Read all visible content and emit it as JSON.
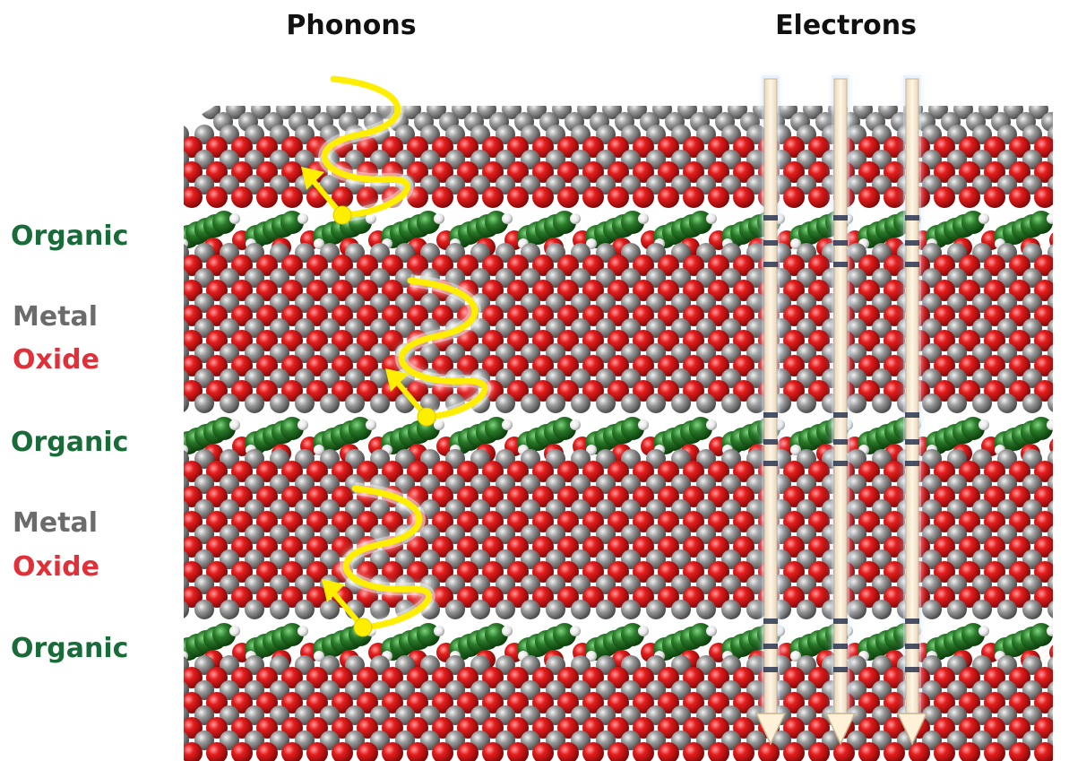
{
  "titles": {
    "phonons": "Phonons",
    "electrons": "Electrons"
  },
  "side_labels": [
    {
      "id": "organic-1",
      "text": "Organic",
      "kind": "organic"
    },
    {
      "id": "metal-1",
      "text": "Metal",
      "kind": "metal"
    },
    {
      "id": "oxide-1",
      "text": "Oxide",
      "kind": "oxide"
    },
    {
      "id": "organic-2",
      "text": "Organic",
      "kind": "organic"
    },
    {
      "id": "metal-2",
      "text": "Metal",
      "kind": "metal"
    },
    {
      "id": "oxide-2",
      "text": "Oxide",
      "kind": "oxide"
    },
    {
      "id": "organic-3",
      "text": "Organic",
      "kind": "organic"
    }
  ],
  "colors": {
    "organic": "#1a6b3a",
    "metal": "#6b6b6b",
    "oxide": "#e0303a",
    "atom_oxygen": "#d91a1a",
    "atom_metal": "#8a8a8a",
    "atom_carbon": "#1f6b24",
    "phonon_wave": "#ffee00",
    "electron_arrow": "#fff0d8"
  },
  "icons": {
    "phonon": "wavy-arrow-icon",
    "electron": "down-arrow-icon"
  }
}
